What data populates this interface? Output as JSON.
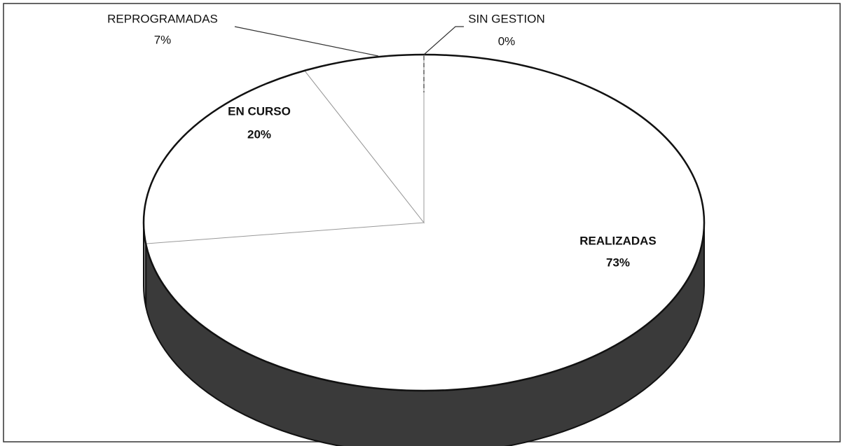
{
  "chart_data": {
    "type": "pie",
    "categories": [
      "REALIZADAS",
      "EN CURSO",
      "REPROGRAMADAS",
      "SIN GESTION"
    ],
    "values": [
      73,
      20,
      7,
      0
    ],
    "value_labels": [
      "73%",
      "20%",
      "7%",
      "0%"
    ],
    "colors": [
      "#3a3a3a",
      "#9a9a9a",
      "#cfcfcf",
      "#ffffff"
    ]
  }
}
